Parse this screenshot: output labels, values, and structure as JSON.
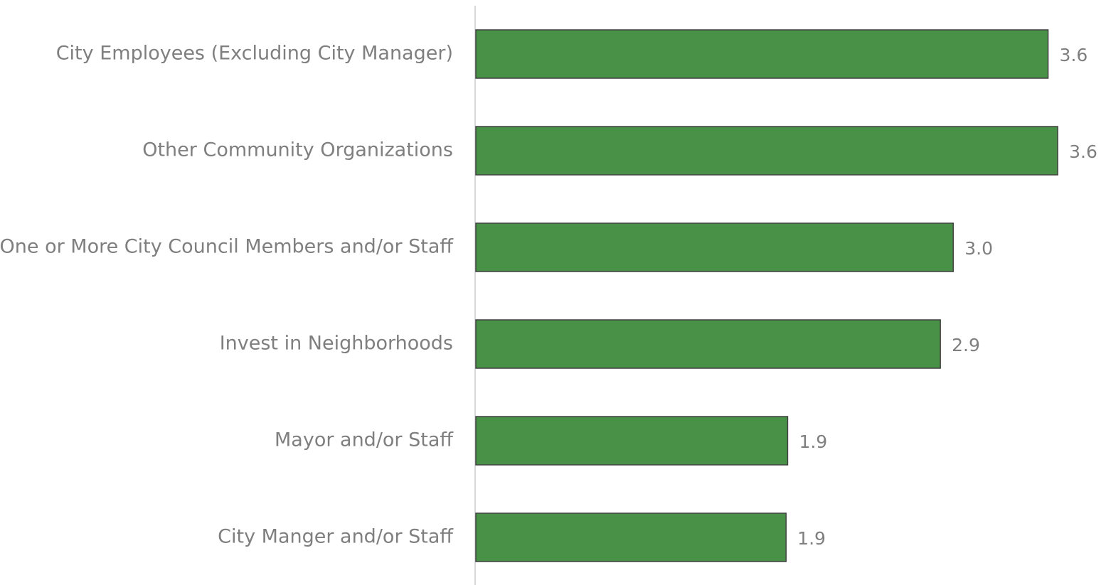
{
  "chart_data": {
    "type": "hbar",
    "categories": [
      "City Employees (Excluding City Manager)",
      "Other Community Organizations",
      "One or More City Council Members and/or Staff",
      "Invest in Neighborhoods",
      "Mayor and/or Staff",
      "City Manger and/or Staff"
    ],
    "values": [
      3.56,
      3.62,
      2.97,
      2.89,
      1.94,
      1.93
    ],
    "value_labels": [
      "3.6",
      "3.6",
      "3.0",
      "2.9",
      "1.9",
      "1.9"
    ],
    "color": "#4a9148"
  }
}
